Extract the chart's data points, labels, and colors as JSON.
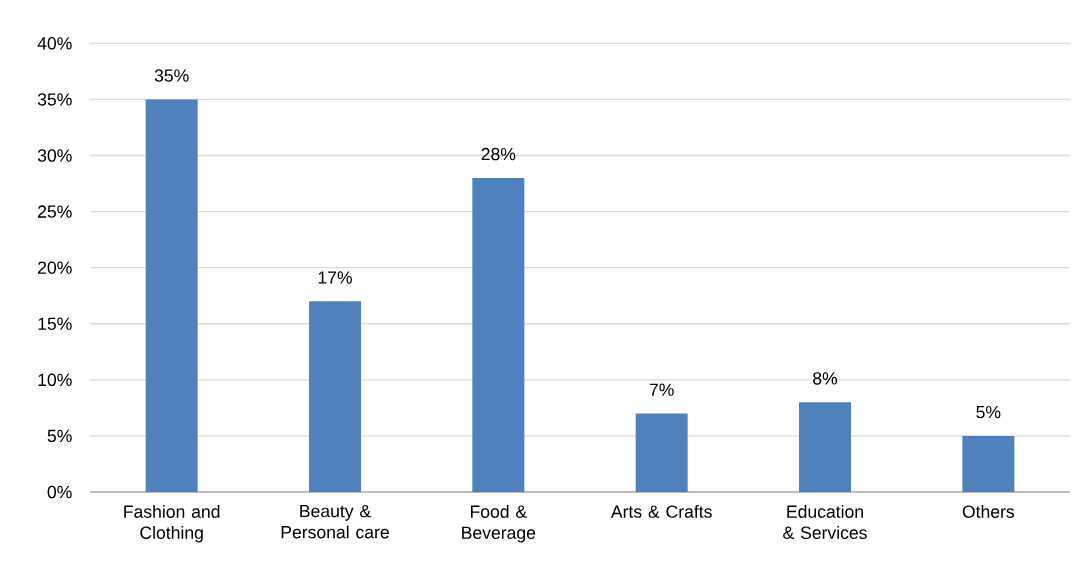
{
  "chart_data": {
    "type": "bar",
    "categories": [
      "Fashion and Clothing",
      "Beauty & Personal care",
      "Food & Beverage",
      "Arts & Crafts",
      "Education & Services",
      "Others"
    ],
    "values": [
      35,
      17,
      28,
      7,
      8,
      5
    ],
    "value_labels": [
      "35%",
      "17%",
      "28%",
      "7%",
      "8%",
      "5%"
    ],
    "color": "#4f81bd",
    "ylim": [
      0,
      40
    ],
    "yticks": [
      {
        "value": 0,
        "label": "0%"
      },
      {
        "value": 5,
        "label": "5%"
      },
      {
        "value": 10,
        "label": "10%"
      },
      {
        "value": 15,
        "label": "15%"
      },
      {
        "value": 20,
        "label": "20%"
      },
      {
        "value": 25,
        "label": "25%"
      },
      {
        "value": 30,
        "label": "30%"
      },
      {
        "value": 35,
        "label": "35%"
      },
      {
        "value": 40,
        "label": "40%"
      }
    ],
    "grid": "y"
  }
}
